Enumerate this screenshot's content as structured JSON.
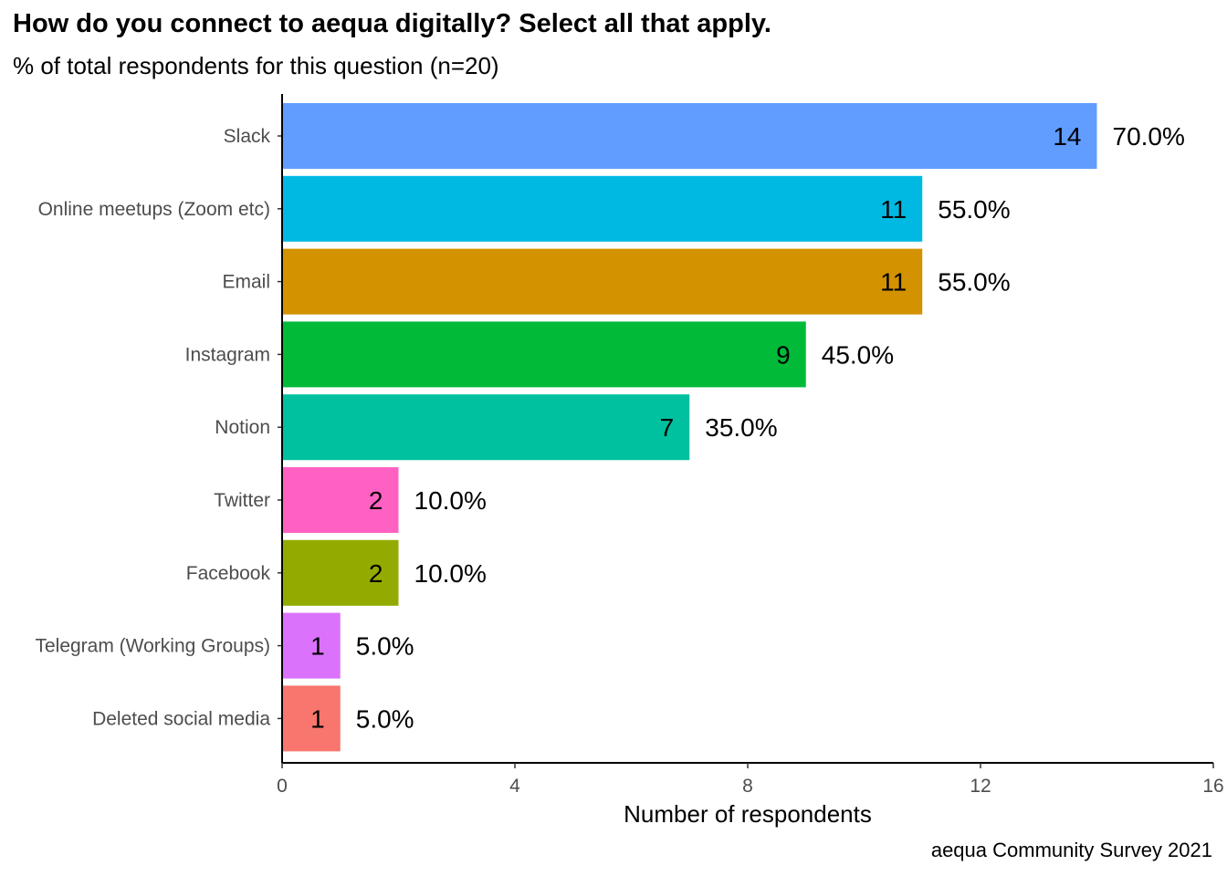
{
  "chart_data": {
    "type": "bar",
    "orientation": "horizontal",
    "title": "How do you connect to aequa digitally? Select all that apply.",
    "subtitle": "% of total respondents for this question (n=20)",
    "xlabel": "Number of respondents",
    "ylabel": "",
    "caption": "aequa Community Survey 2021",
    "xlim": [
      0,
      16
    ],
    "x_ticks": [
      0,
      4,
      8,
      12,
      16
    ],
    "grid": false,
    "legend": "none",
    "categories": [
      "Slack",
      "Online meetups (Zoom etc)",
      "Email",
      "Instagram",
      "Notion",
      "Twitter",
      "Facebook",
      "Telegram (Working Groups)",
      "Deleted social media"
    ],
    "values": [
      14,
      11,
      11,
      9,
      7,
      2,
      2,
      1,
      1
    ],
    "percent_labels": [
      "70.0%",
      "55.0%",
      "55.0%",
      "45.0%",
      "35.0%",
      "10.0%",
      "10.0%",
      "5.0%",
      "5.0%"
    ],
    "colors": [
      "#619CFF",
      "#00B9E3",
      "#D39200",
      "#00BA38",
      "#00C19F",
      "#FF61C3",
      "#93AA00",
      "#DB72FB",
      "#F8766D"
    ]
  }
}
